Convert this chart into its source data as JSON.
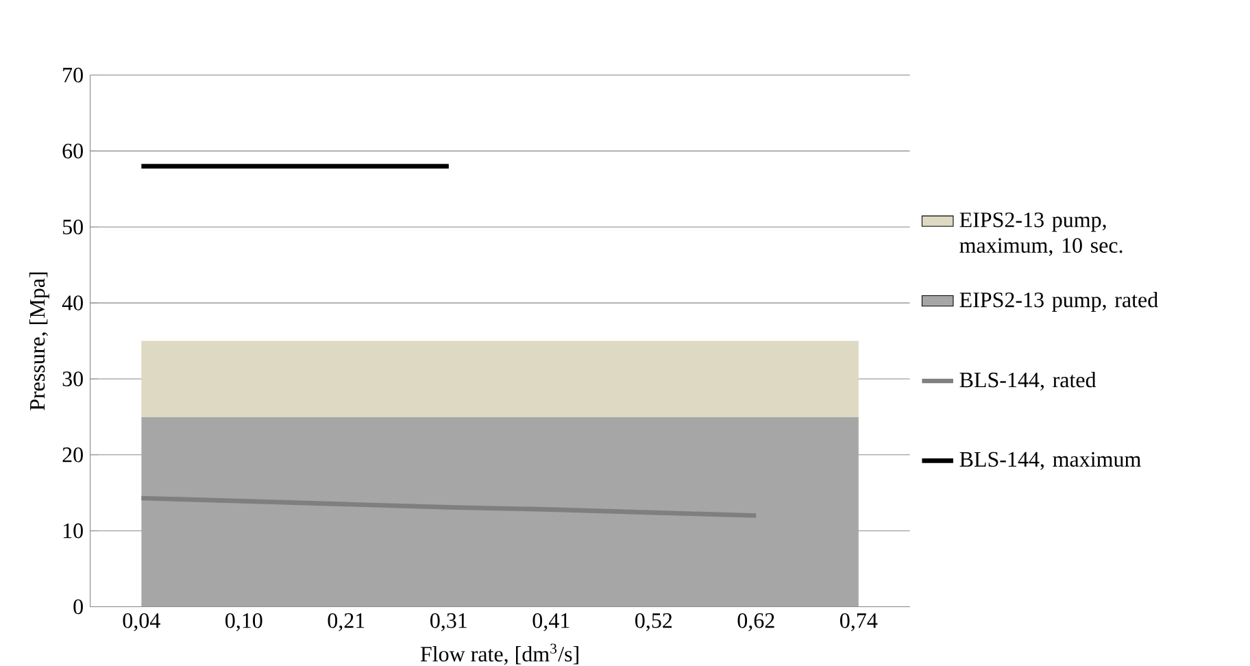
{
  "chart_data": {
    "type": "area",
    "xlabel": "Flow rate, [dm$^{3}$/s]",
    "ylabel": "Pressure, [Mpa]",
    "categories": [
      "0,04",
      "0,10",
      "0,21",
      "0,31",
      "0,41",
      "0,52",
      "0,62",
      "0,74"
    ],
    "stacked": true,
    "series": [
      {
        "name": "EIPS2-13 pump, rated",
        "color": "#a6a6a6",
        "values": [
          25,
          25,
          25,
          25,
          25,
          25,
          25,
          25
        ]
      },
      {
        "name": "EIPS2-13 pump, maximum, 10 sec.",
        "color": "#ddd9c3",
        "values": [
          10,
          10,
          10,
          10,
          10,
          10,
          10,
          10
        ]
      },
      {
        "name": "BLS-144, rated",
        "type": "line",
        "color": "#7f7f7f",
        "values": [
          14.3,
          13.9,
          13.5,
          13.1,
          12.8,
          12.4,
          12.0,
          null
        ]
      },
      {
        "name": "BLS-144, maximum",
        "type": "line",
        "color": "#000000",
        "values": [
          58,
          58,
          58,
          58,
          null,
          null,
          null,
          null
        ]
      }
    ],
    "ylim": [
      0,
      70
    ],
    "yticks": [
      0,
      10,
      20,
      30,
      40,
      50,
      60,
      70
    ],
    "grid": "y",
    "legend": "right"
  }
}
